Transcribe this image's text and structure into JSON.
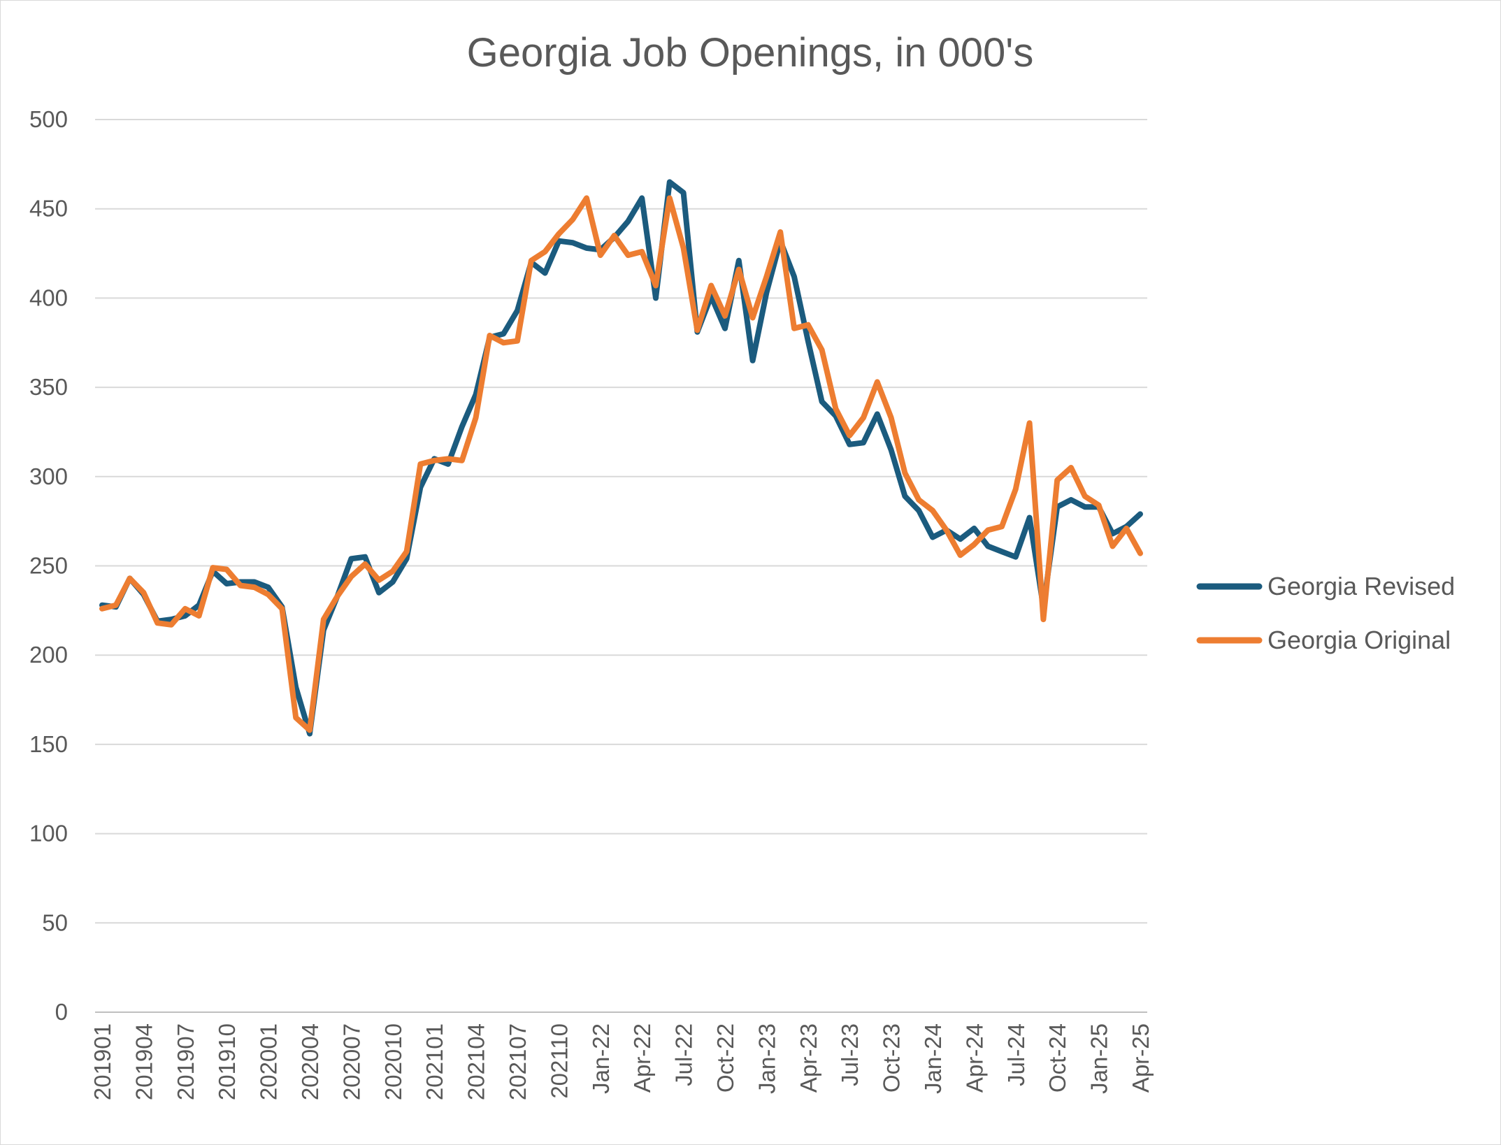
{
  "chart_data": {
    "type": "line",
    "title": "Georgia Job Openings, in 000's",
    "xlabel": "",
    "ylabel": "",
    "ylim": [
      0,
      500
    ],
    "y_ticks": [
      0,
      50,
      100,
      150,
      200,
      250,
      300,
      350,
      400,
      450,
      500
    ],
    "grid": true,
    "legend_position": "right",
    "x": [
      "201901",
      "201902",
      "201903",
      "201904",
      "201905",
      "201906",
      "201907",
      "201908",
      "201909",
      "201910",
      "201911",
      "201912",
      "202001",
      "202002",
      "202003",
      "202004",
      "202005",
      "202006",
      "202007",
      "202008",
      "202009",
      "202010",
      "202011",
      "202012",
      "202101",
      "202102",
      "202103",
      "202104",
      "202105",
      "202106",
      "202107",
      "202108",
      "202109",
      "202110",
      "202111",
      "202112",
      "Jan-22",
      "Feb-22",
      "Mar-22",
      "Apr-22",
      "May-22",
      "Jun-22",
      "Jul-22",
      "Aug-22",
      "Sep-22",
      "Oct-22",
      "Nov-22",
      "Dec-22",
      "Jan-23",
      "Feb-23",
      "Mar-23",
      "Apr-23",
      "May-23",
      "Jun-23",
      "Jul-23",
      "Aug-23",
      "Sep-23",
      "Oct-23",
      "Nov-23",
      "Dec-23",
      "Jan-24",
      "Feb-24",
      "Mar-24",
      "Apr-24",
      "May-24",
      "Jun-24",
      "Jul-24",
      "Aug-24",
      "Sep-24",
      "Oct-24",
      "Nov-24",
      "Dec-24",
      "Jan-25",
      "Feb-25",
      "Mar-25",
      "Apr-25"
    ],
    "x_tick_labels": [
      "201901",
      "201904",
      "201907",
      "201910",
      "202001",
      "202004",
      "202007",
      "202010",
      "202101",
      "202104",
      "202107",
      "202110",
      "Jan-22",
      "Apr-22",
      "Jul-22",
      "Oct-22",
      "Jan-23",
      "Apr-23",
      "Jul-23",
      "Oct-23",
      "Jan-24",
      "Apr-24",
      "Jul-24",
      "Oct-24",
      "Jan-25",
      "Apr-25"
    ],
    "series": [
      {
        "name": "Georgia Revised",
        "color": "#1b5b7e",
        "values": [
          228,
          227,
          243,
          234,
          219,
          220,
          222,
          228,
          247,
          240,
          241,
          241,
          238,
          227,
          182,
          156,
          214,
          233,
          254,
          255,
          235,
          241,
          254,
          294,
          310,
          307,
          328,
          346,
          378,
          380,
          393,
          420,
          414,
          432,
          431,
          428,
          427,
          434,
          443,
          456,
          400,
          465,
          459,
          381,
          401,
          383,
          421,
          365,
          403,
          432,
          412,
          376,
          342,
          334,
          318,
          319,
          335,
          315,
          289,
          281,
          266,
          270,
          265,
          271,
          261,
          258,
          255,
          277,
          227,
          283,
          287,
          283,
          283,
          268,
          272,
          279
        ]
      },
      {
        "name": "Georgia Original",
        "color": "#ed7d31",
        "values": [
          226,
          228,
          243,
          235,
          218,
          217,
          226,
          222,
          249,
          248,
          239,
          238,
          234,
          226,
          165,
          158,
          220,
          233,
          244,
          251,
          242,
          247,
          258,
          307,
          309,
          310,
          309,
          333,
          379,
          375,
          376,
          421,
          426,
          436,
          444,
          456,
          424,
          435,
          424,
          426,
          407,
          456,
          428,
          382,
          407,
          390,
          416,
          389,
          412,
          437,
          383,
          385,
          371,
          338,
          323,
          333,
          353,
          333,
          302,
          287,
          281,
          270,
          256,
          262,
          270,
          272,
          293,
          330,
          220,
          298,
          305,
          289,
          284,
          261,
          271,
          257
        ]
      }
    ]
  }
}
